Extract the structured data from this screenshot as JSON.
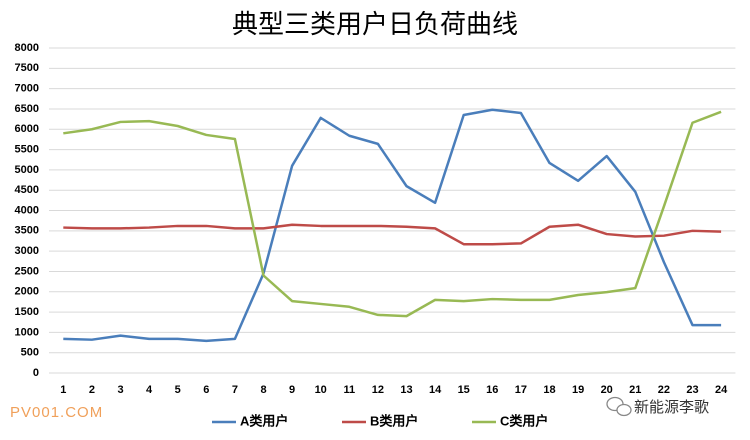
{
  "chart_data": {
    "type": "line",
    "title": "典型三类用户日负荷曲线",
    "categories": [
      "1",
      "2",
      "3",
      "4",
      "5",
      "6",
      "7",
      "8",
      "9",
      "10",
      "11",
      "12",
      "13",
      "14",
      "15",
      "16",
      "17",
      "18",
      "19",
      "20",
      "21",
      "22",
      "23",
      "24"
    ],
    "series": [
      {
        "name": "A类用户",
        "color": "#4a7ebb",
        "values": [
          840,
          820,
          920,
          840,
          840,
          790,
          840,
          2450,
          5100,
          6280,
          5840,
          5640,
          4600,
          4190,
          6350,
          6480,
          6400,
          5170,
          4730,
          5340,
          4460,
          2730,
          1180,
          1180
        ]
      },
      {
        "name": "B类用户",
        "color": "#be4b48",
        "values": [
          3580,
          3560,
          3560,
          3580,
          3620,
          3620,
          3560,
          3560,
          3650,
          3620,
          3620,
          3620,
          3600,
          3560,
          3170,
          3170,
          3190,
          3600,
          3650,
          3420,
          3360,
          3380,
          3500,
          3480
        ]
      },
      {
        "name": "C类用户",
        "color": "#98b954",
        "values": [
          5900,
          6000,
          6180,
          6200,
          6080,
          5860,
          5760,
          2400,
          1770,
          1700,
          1630,
          1430,
          1400,
          1800,
          1770,
          1820,
          1800,
          1800,
          1920,
          1990,
          2090,
          4100,
          6160,
          6430
        ]
      }
    ],
    "ylim": [
      0,
      8000
    ],
    "yticks": [
      0,
      500,
      1000,
      1500,
      2000,
      2500,
      3000,
      3500,
      4000,
      4500,
      5000,
      5500,
      6000,
      6500,
      7000,
      7500,
      8000
    ],
    "grid": true,
    "legend": "bottom",
    "annotations": [
      "PV001.COM",
      "新能源李歌"
    ]
  }
}
